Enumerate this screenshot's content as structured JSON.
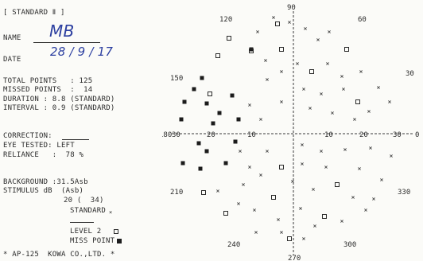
{
  "header": "[ STANDARD Ⅱ ]",
  "name_label": "NAME",
  "name_value": "MB",
  "date_label": "DATE",
  "date_value": "28 / 9 / 17",
  "stats": {
    "total_points": "TOTAL POINTS   : 125",
    "missed_points": "MISSED POINTS  :  14",
    "duration": "DURATION : 8.8 (STANDARD)",
    "interval": "INTERVAL : 0.9 (STANDARD)"
  },
  "correction_label": "CORRECTION:",
  "eye_tested": "EYE TESTED: LEFT",
  "reliance": "RELIANCE   :  78 %",
  "background": "BACKGROUND :31.5Asb",
  "stimulus": "STIMULUS dB  (Asb)",
  "stimulus_value": "20 (  34)",
  "legend": {
    "standard": "STANDARD",
    "level2": "LEVEL 2",
    "miss_point": "MISS POINT"
  },
  "footer": "* AP-125  KOWA CO.,LTD. *",
  "angles": {
    "a90": "90",
    "a120": "120",
    "a60": "60",
    "a150": "150",
    "a30": "30",
    "a180": "180",
    "a0": "0",
    "a210": "210",
    "a330": "330",
    "a240": "240",
    "a300": "300",
    "a270": "270"
  },
  "scale": {
    "l30": "30",
    "l20": "20",
    "l10": "10",
    "r10": "10",
    "r20": "20",
    "r30": "30"
  }
}
